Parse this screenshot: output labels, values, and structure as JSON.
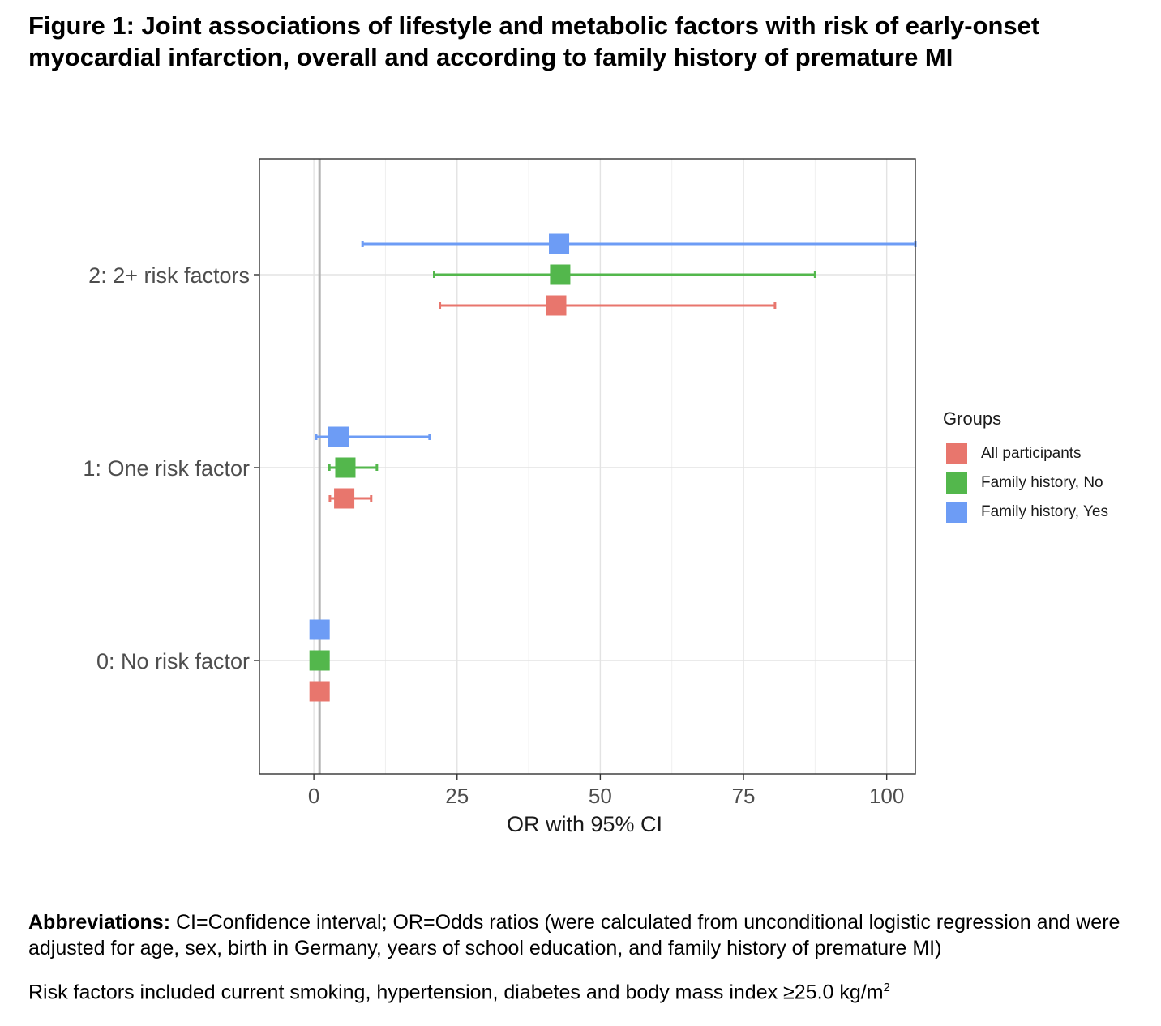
{
  "figure": {
    "title_line1": "Figure 1: Joint associations of lifestyle and metabolic factors with risk of early-onset",
    "title_line2": "myocardial infarction, overall and according to family history of premature MI"
  },
  "chart_data": {
    "type": "forest",
    "xlabel": "OR with 95% CI",
    "ylabel": "",
    "xlim": [
      -9.5,
      105
    ],
    "xticks": [
      0,
      25,
      50,
      75,
      100
    ],
    "reference_line": 1,
    "grid": true,
    "legend_title": "Groups",
    "legend_position": "right",
    "categories": [
      "0: No risk factor",
      "1: One risk factor",
      "2: 2+ risk factors"
    ],
    "series": [
      {
        "name": "All participants",
        "color": "#E8766D",
        "points": [
          {
            "category": "0: No risk factor",
            "or": 1.0,
            "lo": null,
            "hi": null
          },
          {
            "category": "1: One risk factor",
            "or": 5.3,
            "lo": 2.8,
            "hi": 10.0
          },
          {
            "category": "2: 2+ risk factors",
            "or": 42.3,
            "lo": 22.0,
            "hi": 80.5
          }
        ]
      },
      {
        "name": "Family history, No",
        "color": "#53B74C",
        "points": [
          {
            "category": "0: No risk factor",
            "or": 1.0,
            "lo": null,
            "hi": null
          },
          {
            "category": "1: One risk factor",
            "or": 5.5,
            "lo": 2.7,
            "hi": 11.0
          },
          {
            "category": "2: 2+ risk factors",
            "or": 43.0,
            "lo": 21.0,
            "hi": 87.5
          }
        ]
      },
      {
        "name": "Family history, Yes",
        "color": "#6D9CF5",
        "points": [
          {
            "category": "0: No risk factor",
            "or": 1.0,
            "lo": null,
            "hi": null
          },
          {
            "category": "1: One risk factor",
            "or": 4.3,
            "lo": 0.4,
            "hi": 20.2
          },
          {
            "category": "2: 2+ risk factors",
            "or": 42.8,
            "lo": 8.5,
            "hi": 105
          }
        ]
      }
    ]
  },
  "notes": {
    "abbrev_heading": "Abbreviations:",
    "abbrev_text": " CI=Confidence interval; OR=Odds ratios (were calculated from unconditional logistic regression and were adjusted for age, sex, birth in Germany, years of school education, and family history of premature MI)",
    "risk_text": "Risk factors included current smoking, hypertension, diabetes and body mass index ≥25.0 kg/m",
    "risk_sup": "2"
  }
}
